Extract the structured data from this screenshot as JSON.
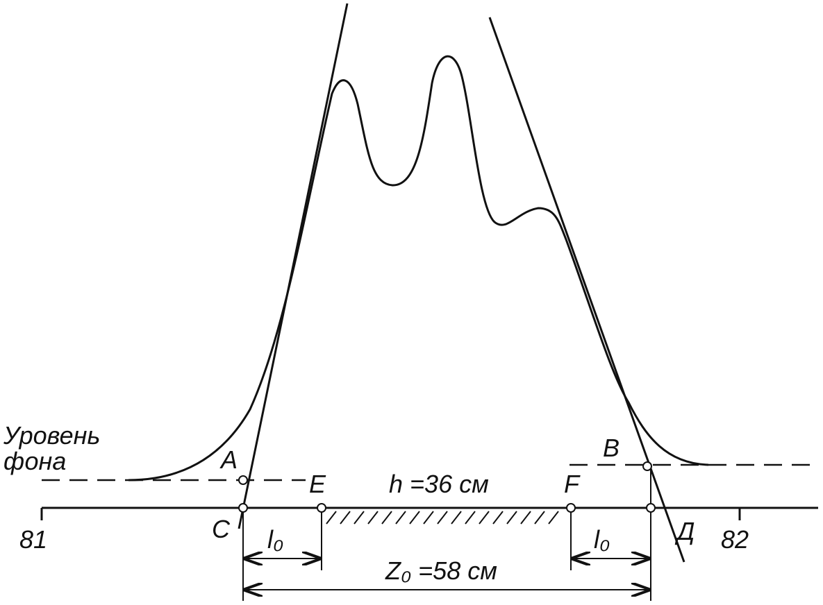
{
  "background_label": {
    "line1": "Уровень",
    "line2": "фона"
  },
  "points": {
    "A": "A",
    "B": "B",
    "C": "C",
    "D": "Д",
    "E": "E",
    "F": "F"
  },
  "dimensions": {
    "h": "h =36 см",
    "l0_left": "l₀",
    "l0_right": "l₀",
    "z0": "Z₀ =58 см"
  },
  "axis": {
    "left": "81",
    "right": "82"
  }
}
